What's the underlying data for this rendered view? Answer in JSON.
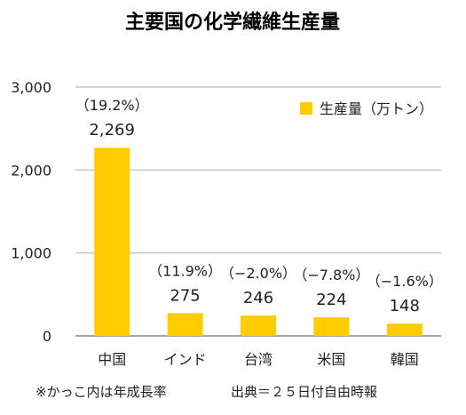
{
  "chart_data": {
    "type": "bar",
    "title": "主要国の化学繊維生産量",
    "categories": [
      "中国",
      "インド",
      "台湾",
      "米国",
      "韓国"
    ],
    "series": [
      {
        "name": "生産量（万トン）",
        "values": [
          2269,
          275,
          246,
          224,
          148
        ]
      }
    ],
    "value_labels": [
      "2,269",
      "275",
      "246",
      "224",
      "148"
    ],
    "growth_labels": [
      "（19.2%）",
      "（11.9%）",
      "（−2.0%）",
      "（−7.8%）",
      "（−1.6%）"
    ],
    "y_ticks": [
      {
        "value": 0,
        "label": "0"
      },
      {
        "value": 1000,
        "label": "1,000"
      },
      {
        "value": 2000,
        "label": "2,000"
      },
      {
        "value": 3000,
        "label": "3,000"
      }
    ],
    "ylim": [
      0,
      3000
    ],
    "grid": true,
    "legend_position": "top-right",
    "bar_color": "#FFCC00",
    "grid_color": "#B8B8B8",
    "footnote": "※かっこ内は年成長率",
    "source": "出典＝２５日付自由時報"
  }
}
